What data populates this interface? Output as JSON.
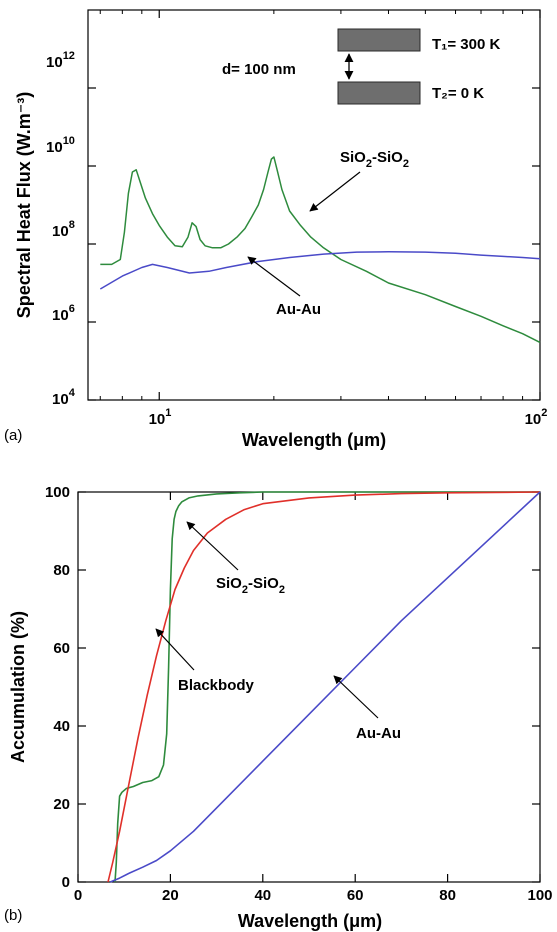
{
  "panel_labels": [
    "(a)",
    "(b)"
  ],
  "chart_data": [
    {
      "type": "line",
      "xscale": "log",
      "yscale": "log",
      "xlim": [
        6.5,
        100
      ],
      "ylim": [
        10000,
        100000000000000
      ],
      "xlabel": "Wavelength (μm)",
      "ylabel": "Spectral Heat Flux (W.m⁻³)",
      "xticks": [
        {
          "value": 10,
          "label": "10",
          "exp": "1"
        },
        {
          "value": 100,
          "label": "10",
          "exp": "2"
        }
      ],
      "yticks": [
        {
          "value": 10000,
          "label": "10",
          "exp": "4"
        },
        {
          "value": 1000000,
          "label": "10",
          "exp": "6"
        },
        {
          "value": 100000000,
          "label": "10",
          "exp": "8"
        },
        {
          "value": 10000000000,
          "label": "10",
          "exp": "10"
        },
        {
          "value": 1000000000000,
          "label": "10",
          "exp": "12"
        }
      ],
      "inset": {
        "gap_label": "d= 100 nm",
        "top_label": "T₁= 300 K",
        "bottom_label": "T₂= 0 K"
      },
      "series": [
        {
          "name": "SiO₂-SiO₂",
          "color": "#2e8b3d",
          "x": [
            7.0,
            7.5,
            7.9,
            8.1,
            8.3,
            8.5,
            8.7,
            8.9,
            9.2,
            9.6,
            10.0,
            10.5,
            11.0,
            11.5,
            11.9,
            12.2,
            12.5,
            12.8,
            13.2,
            13.8,
            14.5,
            15.2,
            16.0,
            16.8,
            17.5,
            18.2,
            18.8,
            19.3,
            19.7,
            20.0,
            20.4,
            21.0,
            22.0,
            23.5,
            25.0,
            27.0,
            30.0,
            35.0,
            40.0,
            50.0,
            60.0,
            70.0,
            80.0,
            90.0,
            100.0
          ],
          "y": [
            30000000,
            30000000,
            40000000,
            200000000,
            2000000000,
            7000000000,
            8000000000,
            4000000000,
            1500000000,
            600000000,
            300000000,
            150000000,
            90000000,
            85000000,
            150000000,
            350000000,
            280000000,
            130000000,
            90000000,
            80000000,
            80000000,
            100000000,
            150000000,
            250000000,
            500000000,
            1000000000,
            2500000000,
            7000000000,
            15000000000,
            17000000000,
            8000000000,
            2500000000,
            700000000,
            300000000,
            150000000,
            80000000,
            40000000,
            20000000,
            10000000,
            5000000,
            2500000,
            1400000,
            800000,
            500000,
            300000
          ]
        },
        {
          "name": "Au-Au",
          "color": "#4a4ac8",
          "x": [
            7.0,
            8.0,
            9.0,
            9.6,
            10.5,
            12.0,
            13.5,
            15.0,
            18.0,
            22.0,
            27.0,
            33.0,
            40.0,
            50.0,
            60.0,
            70.0,
            80.0,
            90.0,
            100.0
          ],
          "y": [
            7000000,
            15000000,
            25000000,
            30000000,
            25000000,
            18000000,
            20000000,
            25000000,
            35000000,
            45000000,
            55000000,
            62000000,
            63000000,
            62000000,
            58000000,
            52000000,
            48000000,
            45000000,
            42000000
          ]
        }
      ],
      "annotations": [
        {
          "text": "SiO",
          "sub1": "2",
          "mid": "-SiO",
          "sub2": "2",
          "target": "SiO₂-SiO₂"
        },
        {
          "text": "Au-Au",
          "target": "Au-Au"
        }
      ]
    },
    {
      "type": "line",
      "xlim": [
        0,
        100
      ],
      "ylim": [
        0,
        100
      ],
      "xlabel": "Wavelength (μm)",
      "ylabel": "Accumulation (%)",
      "xticks": [
        0,
        20,
        40,
        60,
        80,
        100
      ],
      "yticks": [
        0,
        20,
        40,
        60,
        80,
        100
      ],
      "series": [
        {
          "name": "SiO₂-SiO₂",
          "color": "#2e8b3d",
          "x": [
            8.0,
            8.3,
            8.6,
            9.0,
            9.5,
            10.5,
            12.0,
            14.0,
            16.0,
            17.5,
            18.5,
            19.2,
            19.6,
            20.0,
            20.4,
            20.8,
            21.2,
            21.8,
            22.5,
            24.0,
            26.0,
            30.0,
            35.0,
            40.0,
            60.0,
            80.0,
            100.0
          ],
          "y": [
            0,
            5,
            15,
            22,
            23,
            24,
            24.5,
            25.5,
            26,
            27,
            30,
            38,
            55,
            75,
            88,
            93,
            95,
            96.5,
            97.5,
            98.5,
            99,
            99.5,
            99.8,
            100,
            100,
            100,
            100
          ]
        },
        {
          "name": "Blackbody",
          "color": "#e0302a",
          "x": [
            6.5,
            7.5,
            9.0,
            11.0,
            13.0,
            15.0,
            17.0,
            19.0,
            21.0,
            23.0,
            25.0,
            28.0,
            32.0,
            36.0,
            40.0,
            50.0,
            60.0,
            70.0,
            80.0,
            90.0,
            100.0
          ],
          "y": [
            0,
            5,
            13,
            25,
            37,
            48,
            58,
            67,
            75,
            80.5,
            85,
            89.5,
            93,
            95.5,
            97,
            98.5,
            99.2,
            99.6,
            99.8,
            99.9,
            100
          ]
        },
        {
          "name": "Au-Au",
          "color": "#4a4ac8",
          "x": [
            7.0,
            9.0,
            11.0,
            14.0,
            17.0,
            20.0,
            25.0,
            30.0,
            40.0,
            50.0,
            60.0,
            70.0,
            80.0,
            90.0,
            100.0
          ],
          "y": [
            0,
            1,
            2.2,
            3.8,
            5.5,
            8,
            13,
            19,
            31,
            43,
            55,
            67,
            78,
            89,
            100
          ]
        }
      ],
      "annotations": [
        {
          "text": "SiO",
          "sub1": "2",
          "mid": "-SiO",
          "sub2": "2",
          "target": "SiO₂-SiO₂"
        },
        {
          "text": "Blackbody",
          "target": "Blackbody"
        },
        {
          "text": "Au-Au",
          "target": "Au-Au"
        }
      ]
    }
  ]
}
